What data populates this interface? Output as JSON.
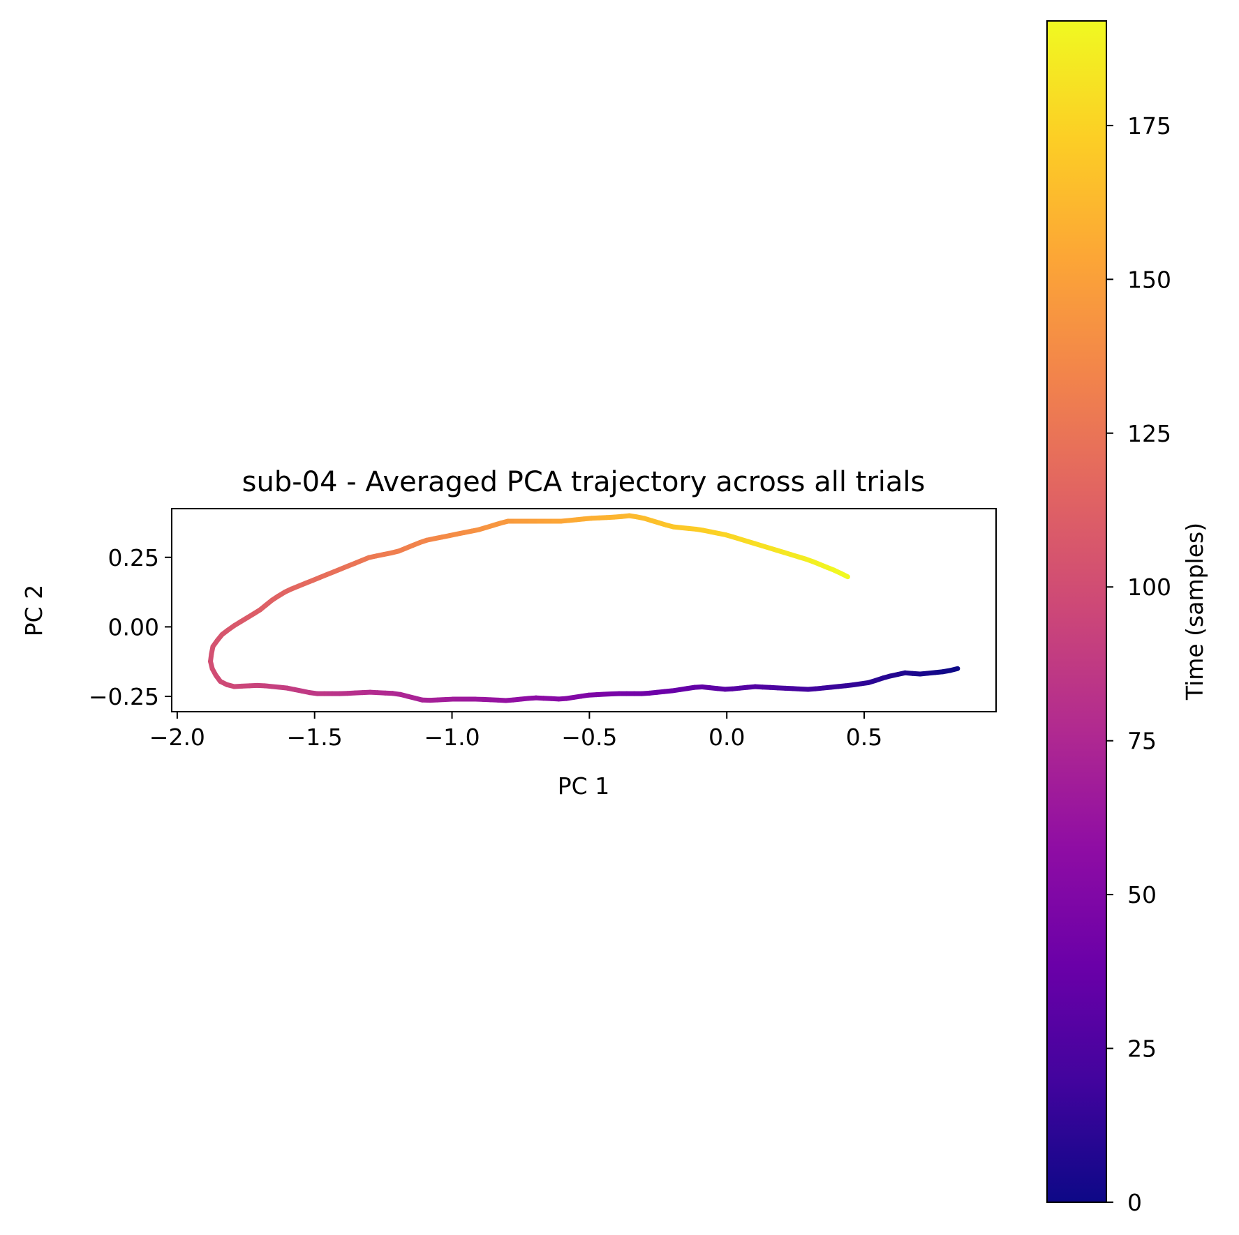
{
  "chart_data": {
    "type": "line",
    "title": "sub-04 - Averaged PCA trajectory across all trials",
    "xlabel": "PC 1",
    "ylabel": "PC 2",
    "xlim": [
      -2.02,
      0.98
    ],
    "ylim": [
      -0.305,
      0.425
    ],
    "xticks": [
      -2.0,
      -1.5,
      -1.0,
      -0.5,
      0.0,
      0.5
    ],
    "xtick_labels": [
      "−2.0",
      "−1.5",
      "−1.0",
      "−0.5",
      "0.0",
      "0.5"
    ],
    "yticks": [
      -0.25,
      0.0,
      0.25
    ],
    "ytick_labels": [
      "−0.25",
      "0.00",
      "0.25"
    ],
    "grid": false,
    "colormap": "plasma",
    "colorbar": {
      "label": "Time (samples)",
      "range": [
        0,
        192
      ],
      "ticks": [
        0,
        25,
        50,
        75,
        100,
        125,
        150,
        175
      ],
      "tick_labels": [
        "0",
        "25",
        "50",
        "75",
        "100",
        "125",
        "150",
        "175"
      ]
    },
    "series": [
      {
        "x": [
          0.84,
          0.8,
          0.7,
          0.65,
          0.58,
          0.52,
          0.45,
          0.4,
          0.3,
          0.2,
          0.1,
          0.0,
          -0.1,
          -0.2,
          -0.3,
          -0.4,
          -0.5,
          -0.6,
          -0.7,
          -0.8,
          -0.9,
          -1.0,
          -1.1,
          -1.2,
          -1.3,
          -1.4,
          -1.5,
          -1.6,
          -1.7,
          -1.8,
          -1.84,
          -1.87,
          -1.88,
          -1.87,
          -1.84,
          -1.8,
          -1.75,
          -1.7,
          -1.65,
          -1.6,
          -1.5,
          -1.4,
          -1.3,
          -1.2,
          -1.1,
          -1.0,
          -0.9,
          -0.8,
          -0.7,
          -0.6,
          -0.5,
          -0.4,
          -0.35,
          -0.3,
          -0.2,
          -0.1,
          0.0,
          0.1,
          0.2,
          0.3,
          0.4,
          0.44
        ],
        "y": [
          -0.15,
          -0.16,
          -0.17,
          -0.165,
          -0.18,
          -0.2,
          -0.21,
          -0.215,
          -0.225,
          -0.22,
          -0.215,
          -0.225,
          -0.215,
          -0.23,
          -0.24,
          -0.24,
          -0.245,
          -0.26,
          -0.255,
          -0.265,
          -0.26,
          -0.26,
          -0.265,
          -0.24,
          -0.235,
          -0.24,
          -0.24,
          -0.22,
          -0.21,
          -0.215,
          -0.2,
          -0.16,
          -0.12,
          -0.07,
          -0.03,
          0.0,
          0.03,
          0.06,
          0.1,
          0.13,
          0.17,
          0.21,
          0.25,
          0.27,
          0.31,
          0.33,
          0.35,
          0.38,
          0.38,
          0.38,
          0.39,
          0.395,
          0.4,
          0.39,
          0.36,
          0.35,
          0.33,
          0.3,
          0.27,
          0.24,
          0.2,
          0.18
        ],
        "t_range": [
          0,
          192
        ]
      }
    ]
  }
}
